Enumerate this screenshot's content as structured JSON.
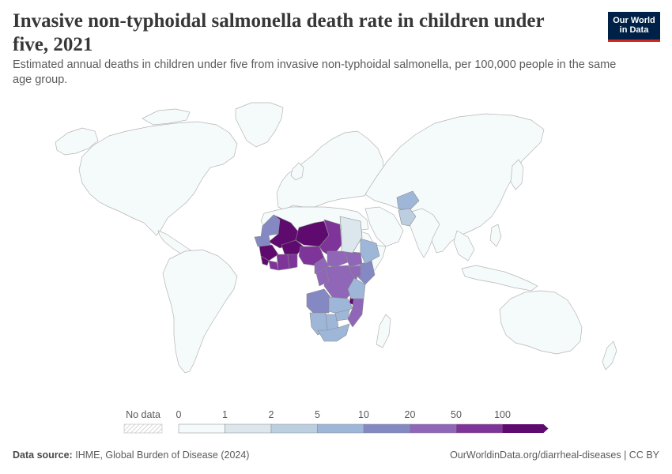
{
  "header": {
    "title": "Invasive non-typhoidal salmonella death rate in children under five, 2021",
    "subtitle": "Estimated annual deaths in children under five from invasive non-typhoidal salmonella, per 100,000 people in the same age group.",
    "logo_line1": "Our World",
    "logo_line2": "in Data"
  },
  "colors": {
    "no_data": "#ffffff",
    "bins": [
      "#f5fafa",
      "#dce7ed",
      "#bccfe0",
      "#9eb7d9",
      "#8489c4",
      "#8f66b8",
      "#7e3499",
      "#5e0a6e"
    ],
    "border": "#b5b5b5"
  },
  "legend": {
    "no_data_label": "No data",
    "ticks": [
      "0",
      "1",
      "2",
      "5",
      "10",
      "20",
      "50",
      "100"
    ]
  },
  "map_data": {
    "legend_type": "binned choropleth",
    "unit": "deaths per 100,000 children under five",
    "regions": [
      {
        "name": "Mali",
        "bin": 7
      },
      {
        "name": "Niger",
        "bin": 7
      },
      {
        "name": "Chad",
        "bin": 6
      },
      {
        "name": "Burkina Faso",
        "bin": 7
      },
      {
        "name": "Guinea",
        "bin": 7
      },
      {
        "name": "Sierra Leone",
        "bin": 7
      },
      {
        "name": "Liberia",
        "bin": 6
      },
      {
        "name": "Cote d'Ivoire",
        "bin": 6
      },
      {
        "name": "Ghana",
        "bin": 6
      },
      {
        "name": "Nigeria",
        "bin": 6
      },
      {
        "name": "Mauritania",
        "bin": 4
      },
      {
        "name": "Senegal",
        "bin": 4
      },
      {
        "name": "Central African Republic",
        "bin": 5
      },
      {
        "name": "Cameroon",
        "bin": 5
      },
      {
        "name": "DR Congo",
        "bin": 5
      },
      {
        "name": "Congo",
        "bin": 5
      },
      {
        "name": "South Sudan",
        "bin": 5
      },
      {
        "name": "Malawi",
        "bin": 7
      },
      {
        "name": "Mozambique",
        "bin": 5
      },
      {
        "name": "Angola",
        "bin": 4
      },
      {
        "name": "Zambia",
        "bin": 3
      },
      {
        "name": "Kenya",
        "bin": 4
      },
      {
        "name": "Tanzania",
        "bin": 3
      },
      {
        "name": "Ethiopia",
        "bin": 3
      },
      {
        "name": "Uganda",
        "bin": 5
      },
      {
        "name": "Namibia",
        "bin": 3
      },
      {
        "name": "Botswana",
        "bin": 3
      },
      {
        "name": "Zimbabwe",
        "bin": 3
      },
      {
        "name": "South Africa",
        "bin": 3
      },
      {
        "name": "Afghanistan",
        "bin": 3
      },
      {
        "name": "Pakistan",
        "bin": 2
      },
      {
        "name": "Sudan",
        "bin": 1
      }
    ]
  },
  "footer": {
    "source_label": "Data source:",
    "source_text": "IHME, Global Burden of Disease (2024)",
    "url": "OurWorldinData.org/diarrheal-diseases | CC BY"
  }
}
